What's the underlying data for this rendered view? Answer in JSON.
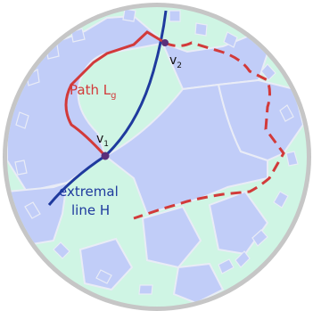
{
  "labels": {
    "path_main": "Path L",
    "path_sub": "g",
    "line_1": "extremal",
    "line_2": "line H",
    "v1_main": "v",
    "v1_sub": "1",
    "v2_main": "v",
    "v2_sub": "2"
  },
  "colors": {
    "disk_border": "#c6c6c6",
    "tile_blue": "#c1cdf8",
    "tile_green": "#cff5e4",
    "tile_edge": "#e9ecf6",
    "path": "#d23a3a",
    "extremal_line": "#1f3a9e",
    "vertex": "#5a2f7a",
    "label_dark": "#111111"
  }
}
